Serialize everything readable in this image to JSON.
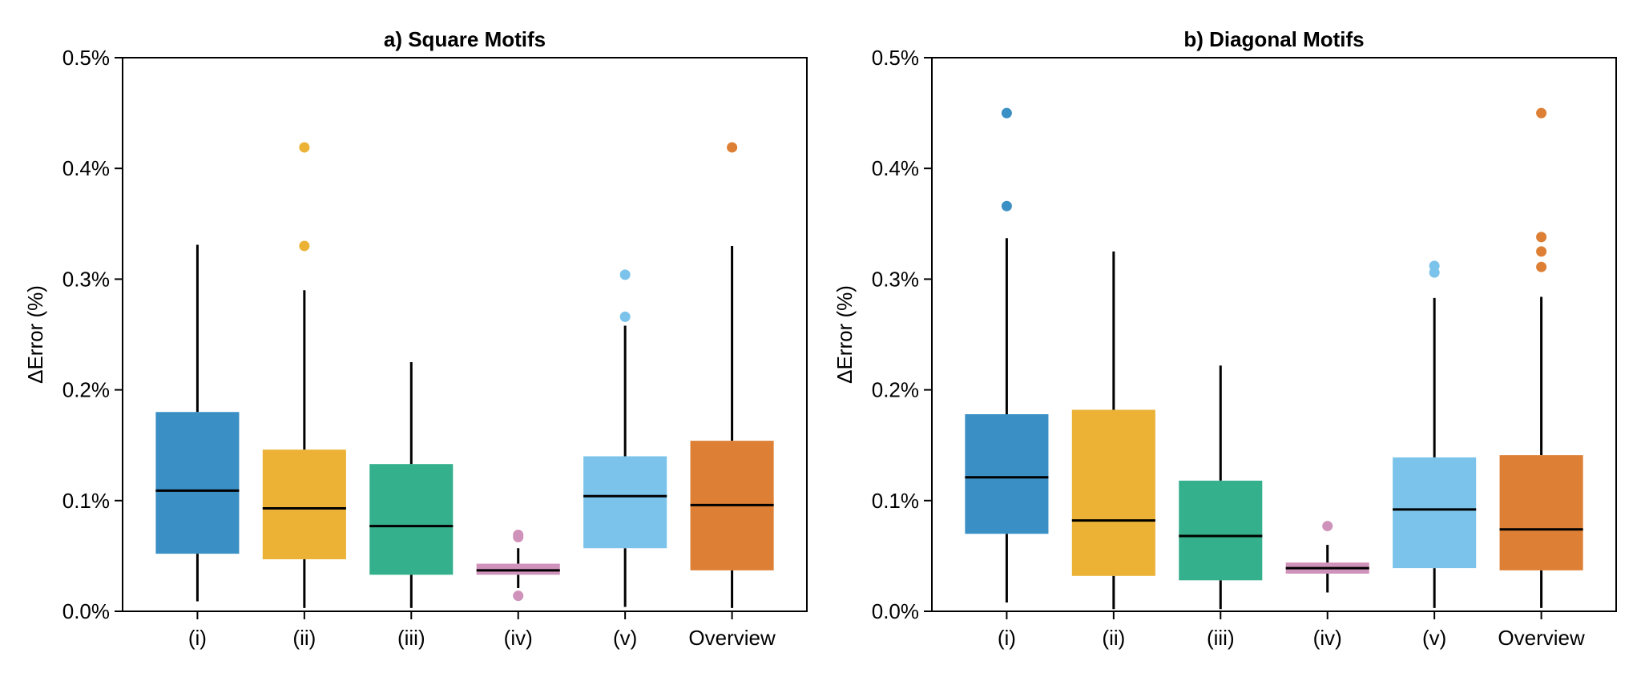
{
  "chart_data": [
    {
      "type": "boxplot",
      "title": "a) Square Motifs",
      "xlabel": "",
      "ylabel": "ΔError (%)",
      "ylim": [
        0,
        0.5
      ],
      "yticks": [
        0.0,
        0.1,
        0.2,
        0.3,
        0.4,
        0.5
      ],
      "ytick_labels": [
        "0.0%",
        "0.1%",
        "0.2%",
        "0.3%",
        "0.4%",
        "0.5%"
      ],
      "categories": [
        "(i)",
        "(ii)",
        "(iii)",
        "(iv)",
        "(v)",
        "Overview"
      ],
      "colors": [
        "#3a8fc5",
        "#ebb236",
        "#34b08c",
        "#cf92ba",
        "#7bc3ea",
        "#dd7f34"
      ],
      "boxes": [
        {
          "whislo": 0.009,
          "q1": 0.052,
          "median": 0.109,
          "q3": 0.18,
          "whishi": 0.331,
          "fliers": []
        },
        {
          "whislo": 0.003,
          "q1": 0.047,
          "median": 0.093,
          "q3": 0.146,
          "whishi": 0.29,
          "fliers": [
            0.33,
            0.419
          ]
        },
        {
          "whislo": 0.003,
          "q1": 0.033,
          "median": 0.077,
          "q3": 0.133,
          "whishi": 0.225,
          "fliers": []
        },
        {
          "whislo": 0.021,
          "q1": 0.033,
          "median": 0.037,
          "q3": 0.043,
          "whishi": 0.057,
          "fliers": [
            0.014,
            0.067,
            0.069
          ]
        },
        {
          "whislo": 0.004,
          "q1": 0.057,
          "median": 0.104,
          "q3": 0.14,
          "whishi": 0.258,
          "fliers": [
            0.266,
            0.304
          ]
        },
        {
          "whislo": 0.003,
          "q1": 0.037,
          "median": 0.096,
          "q3": 0.154,
          "whishi": 0.33,
          "fliers": [
            0.419
          ]
        }
      ]
    },
    {
      "type": "boxplot",
      "title": "b) Diagonal Motifs",
      "xlabel": "",
      "ylabel": "ΔError (%)",
      "ylim": [
        0,
        0.5
      ],
      "yticks": [
        0.0,
        0.1,
        0.2,
        0.3,
        0.4,
        0.5
      ],
      "ytick_labels": [
        "0.0%",
        "0.1%",
        "0.2%",
        "0.3%",
        "0.4%",
        "0.5%"
      ],
      "categories": [
        "(i)",
        "(ii)",
        "(iii)",
        "(iv)",
        "(v)",
        "Overview"
      ],
      "colors": [
        "#3a8fc5",
        "#ebb236",
        "#34b08c",
        "#cf92ba",
        "#7bc3ea",
        "#dd7f34"
      ],
      "boxes": [
        {
          "whislo": 0.008,
          "q1": 0.07,
          "median": 0.121,
          "q3": 0.178,
          "whishi": 0.337,
          "fliers": [
            0.366,
            0.45
          ]
        },
        {
          "whislo": 0.002,
          "q1": 0.032,
          "median": 0.082,
          "q3": 0.182,
          "whishi": 0.325,
          "fliers": []
        },
        {
          "whislo": 0.002,
          "q1": 0.028,
          "median": 0.068,
          "q3": 0.118,
          "whishi": 0.222,
          "fliers": []
        },
        {
          "whislo": 0.017,
          "q1": 0.034,
          "median": 0.039,
          "q3": 0.044,
          "whishi": 0.06,
          "fliers": [
            0.077
          ]
        },
        {
          "whislo": 0.003,
          "q1": 0.039,
          "median": 0.092,
          "q3": 0.139,
          "whishi": 0.283,
          "fliers": [
            0.306,
            0.312
          ]
        },
        {
          "whislo": 0.003,
          "q1": 0.037,
          "median": 0.074,
          "q3": 0.141,
          "whishi": 0.284,
          "fliers": [
            0.311,
            0.325,
            0.338,
            0.45
          ]
        }
      ]
    }
  ]
}
